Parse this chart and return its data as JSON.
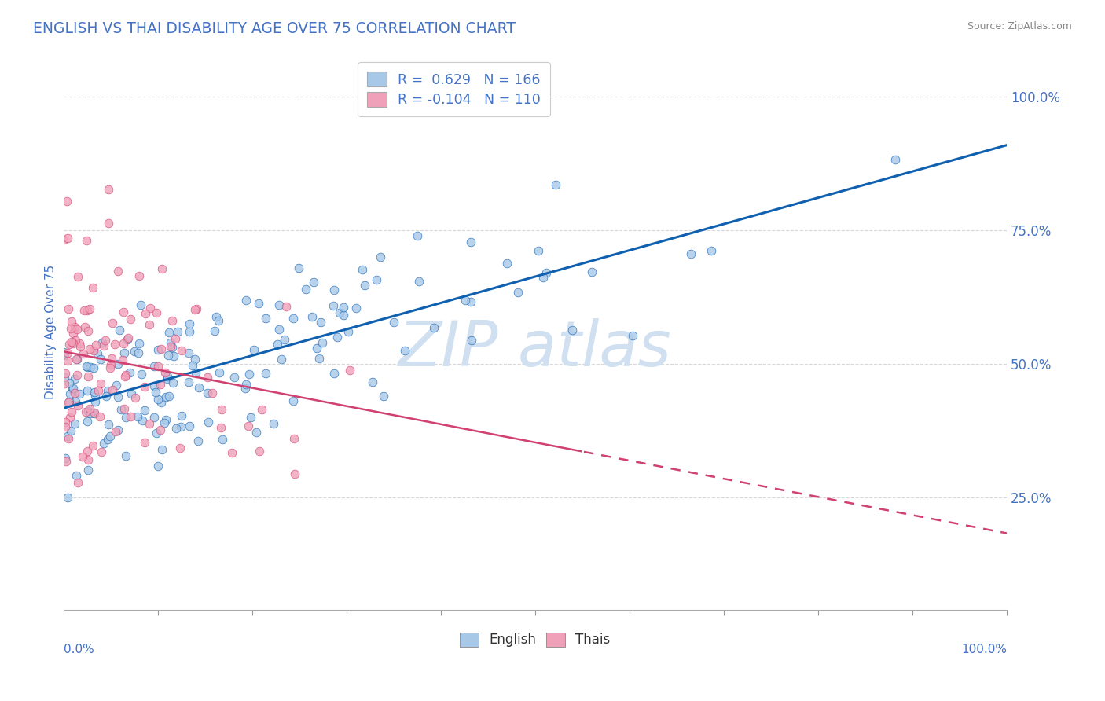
{
  "title": "ENGLISH VS THAI DISABILITY AGE OVER 75 CORRELATION CHART",
  "source": "Source: ZipAtlas.com",
  "ylabel": "Disability Age Over 75",
  "legend_english": "English",
  "legend_thais": "Thais",
  "r_english": 0.629,
  "n_english": 166,
  "r_thais": -0.104,
  "n_thais": 110,
  "english_color": "#a8c8e8",
  "thais_color": "#f0a0b8",
  "english_line_color": "#1060b0",
  "thais_line_color": "#d04070",
  "title_color": "#4472c4",
  "axis_label_color": "#4472c4",
  "tick_color": "#4472c4",
  "background_color": "#ffffff",
  "grid_color": "#d8d8d8",
  "watermark_color": "#d0e0f0",
  "xmin": 0.0,
  "xmax": 1.0,
  "ymin": 0.04,
  "ymax": 1.08,
  "yticks": [
    0.25,
    0.5,
    0.75,
    1.0
  ],
  "ytick_labels": [
    "25.0%",
    "50.0%",
    "75.0%",
    "100.0%"
  ]
}
